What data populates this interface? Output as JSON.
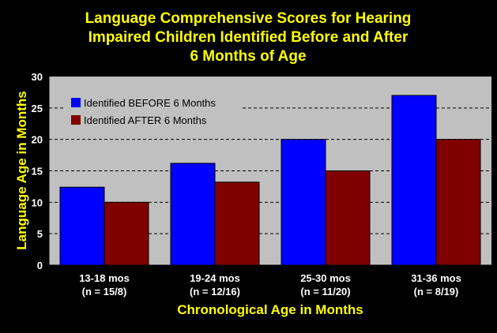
{
  "colors": {
    "background": "#000000",
    "plot_area": "#c0c0c0",
    "title": "#ffff00",
    "before": "#0000ff",
    "after": "#800000",
    "text": "#ffffff"
  },
  "chart_data": {
    "type": "bar",
    "title": [
      "Language Comprehensive Scores for Hearing",
      "Impaired Children Identified Before and After",
      "6 Months of Age"
    ],
    "xlabel": "Chronological Age in Months",
    "ylabel": "Language Age in Months",
    "categories": [
      [
        "13-18 mos",
        "(n = 15/8)"
      ],
      [
        "19-24 mos",
        "(n = 12/16)"
      ],
      [
        "25-30 mos",
        "(n = 11/20)"
      ],
      [
        "31-36 mos",
        "(n = 8/19)"
      ]
    ],
    "series": [
      {
        "name": "Identified BEFORE 6 Months",
        "values": [
          12.4,
          16.2,
          20,
          27
        ],
        "color": "#0000ff"
      },
      {
        "name": "Identified AFTER 6 Months",
        "values": [
          10,
          13.2,
          15,
          20
        ],
        "color": "#800000"
      }
    ],
    "ylim": [
      0,
      30
    ],
    "yticks": [
      "0",
      "5",
      "10",
      "15",
      "20",
      "25",
      "30"
    ],
    "ytick_values": [
      0,
      5,
      10,
      15,
      20,
      25,
      30
    ],
    "grid": true,
    "legend": "top-left"
  }
}
